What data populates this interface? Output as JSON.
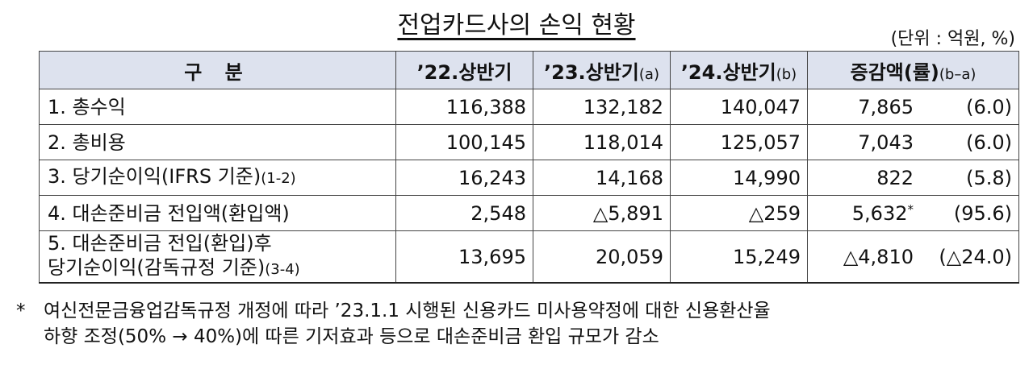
{
  "title": "전업카드사의 손익 현황",
  "unit": "(단위 : 억원, %)",
  "table": {
    "header": [
      {
        "main": "구 분"
      },
      {
        "main": "’22.상반기"
      },
      {
        "main": "’23.상반기",
        "sub": "(a)"
      },
      {
        "main": "’24.상반기",
        "sub": "(b)"
      },
      {
        "main": "증감액(률)",
        "sub": "(b–a)"
      }
    ],
    "rows": [
      {
        "label": [
          "1. 총수익"
        ],
        "values": [
          "116,388",
          "132,182",
          "140,047"
        ],
        "change": "7,865",
        "rate": "(6.0)"
      },
      {
        "label": [
          "2. 총비용"
        ],
        "values": [
          "100,145",
          "118,014",
          "125,057"
        ],
        "change": "7,043",
        "rate": "(6.0)"
      },
      {
        "label": [
          "3. 당기순이익(IFRS 기준)"
        ],
        "label_note": "(1-2)",
        "values": [
          "16,243",
          "14,168",
          "14,990"
        ],
        "change": "822",
        "rate": "(5.8)"
      },
      {
        "label": [
          "4. 대손준비금 전입액(환입액)"
        ],
        "values": [
          "2,548",
          "△5,891",
          "△259"
        ],
        "change": "5,632",
        "change_mark": "*",
        "rate": "(95.6)"
      },
      {
        "label": [
          "5. 대손준비금 전입(환입)후",
          "당기순이익(감독규정 기준)"
        ],
        "label_note": "(3-4)",
        "values": [
          "13,695",
          "20,059",
          "15,249"
        ],
        "change": "△4,810",
        "rate": "(△24.0)"
      }
    ]
  },
  "footnote": {
    "marker": "*",
    "lines": [
      "여신전문금융업감독규정 개정에 따라 ’23.1.1 시행된 신용카드 미사용약정에 대한 신용환산율",
      "하향 조정(50% → 40%)에 따른 기저효과 등으로 대손준비금 환입 규모가 감소"
    ]
  }
}
